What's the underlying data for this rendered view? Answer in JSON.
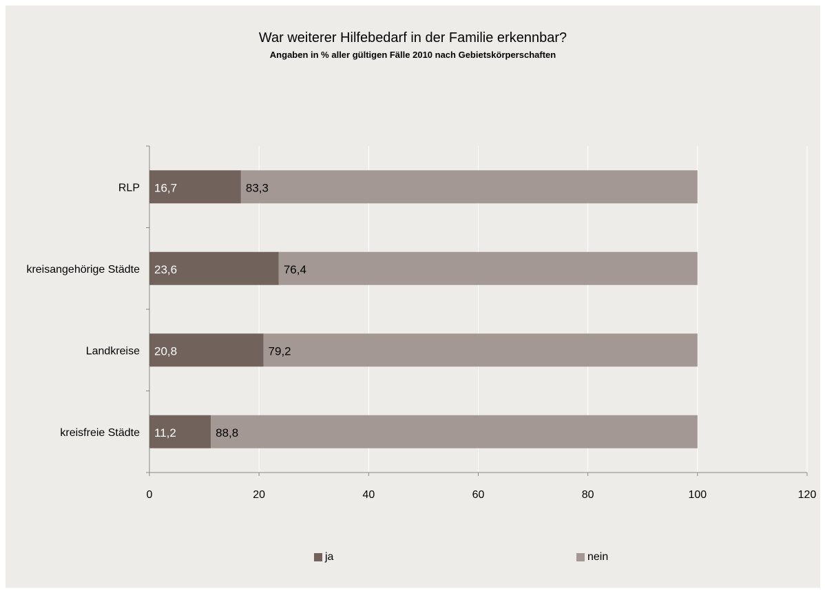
{
  "chart_data": {
    "type": "bar",
    "orientation": "horizontal",
    "stacked": true,
    "title": "War weiterer Hilfebedarf in der Familie erkennbar?",
    "subtitle": "Angaben in % aller gültigen Fälle 2010 nach Gebietskörperschaften",
    "categories": [
      "RLP",
      "kreisangehörige Städte",
      "Landkreise",
      "kreisfreie Städte"
    ],
    "series": [
      {
        "name": "ja",
        "values": [
          16.7,
          23.6,
          20.8,
          11.2
        ],
        "labels": [
          "16,7",
          "23,6",
          "20,8",
          "11,2"
        ],
        "color": "#72625c",
        "label_color": "#ffffff"
      },
      {
        "name": "nein",
        "values": [
          83.3,
          76.4,
          79.2,
          88.8
        ],
        "labels": [
          "83,3",
          "76,4",
          "79,2",
          "88,8"
        ],
        "color": "#a39893",
        "label_color": "#000000"
      }
    ],
    "xlim": [
      0,
      120
    ],
    "xticks": [
      "0",
      "20",
      "40",
      "60",
      "80",
      "100",
      "120"
    ],
    "grid": true,
    "legend": "bottom"
  }
}
